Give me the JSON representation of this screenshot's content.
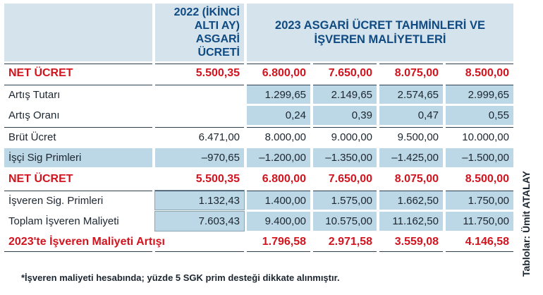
{
  "header": {
    "left_title": "2022 (İKİNCİ ALTI AY) ASGARİ ÜCRETİ",
    "right_title": "2023 ASGARİ ÜCRET TAHMİNLERİ VE İŞVEREN MALİYETLERİ"
  },
  "rows": [
    {
      "label": "NET ÜCRET",
      "v2022": "5.500,35",
      "v": [
        "6.800,00",
        "7.650,00",
        "8.075,00",
        "8.500,00"
      ]
    },
    {
      "label": "Artış Tutarı",
      "v2022": "",
      "v": [
        "1.299,65",
        "2.149,65",
        "2.574,65",
        "2.999,65"
      ]
    },
    {
      "label": "Artış Oranı",
      "v2022": "",
      "v": [
        "0,24",
        "0,39",
        "0,47",
        "0,55"
      ]
    },
    {
      "label": "Brüt Ücret",
      "v2022": "6.471,00",
      "v": [
        "8.000,00",
        "9.000,00",
        "9.500,00",
        "10.000,00"
      ]
    },
    {
      "label": "İşçi Sig Primleri",
      "v2022": "–970,65",
      "v": [
        "–1.200,00",
        "–1.350,00",
        "–1.425,00",
        "–1.500,00"
      ]
    },
    {
      "label": "NET ÜCRET",
      "v2022": "5.500,35",
      "v": [
        "6.800,00",
        "7.650,00",
        "8.075,00",
        "8.500,00"
      ]
    },
    {
      "label": "İşveren Sig. Primleri",
      "v2022": "1.132,43",
      "v": [
        "1.400,00",
        "1.575,00",
        "1.662,50",
        "1.750,00"
      ]
    },
    {
      "label": "Toplam İşveren Maliyeti",
      "v2022": "7.603,43",
      "v": [
        "9.400,00",
        "10.575,00",
        "11.162,50",
        "11.750,00"
      ]
    },
    {
      "label": "2023'te İşveren Maliyeti Artışı",
      "v2022": "",
      "v": [
        "1.796,58",
        "2.971,58",
        "3.559,08",
        "4.146,58"
      ]
    }
  ],
  "footnote": "*İşveren maliyeti hesabında; yüzde 5 SGK prim desteği dikkate alınmıştır.",
  "credit": "Tablolar: Ümit ATALAY",
  "colors": {
    "header_bg": "#d4e3ec",
    "cell_shade": "#bcd7e5",
    "accent_red": "#d2141f",
    "header_text": "#0f4a82"
  }
}
